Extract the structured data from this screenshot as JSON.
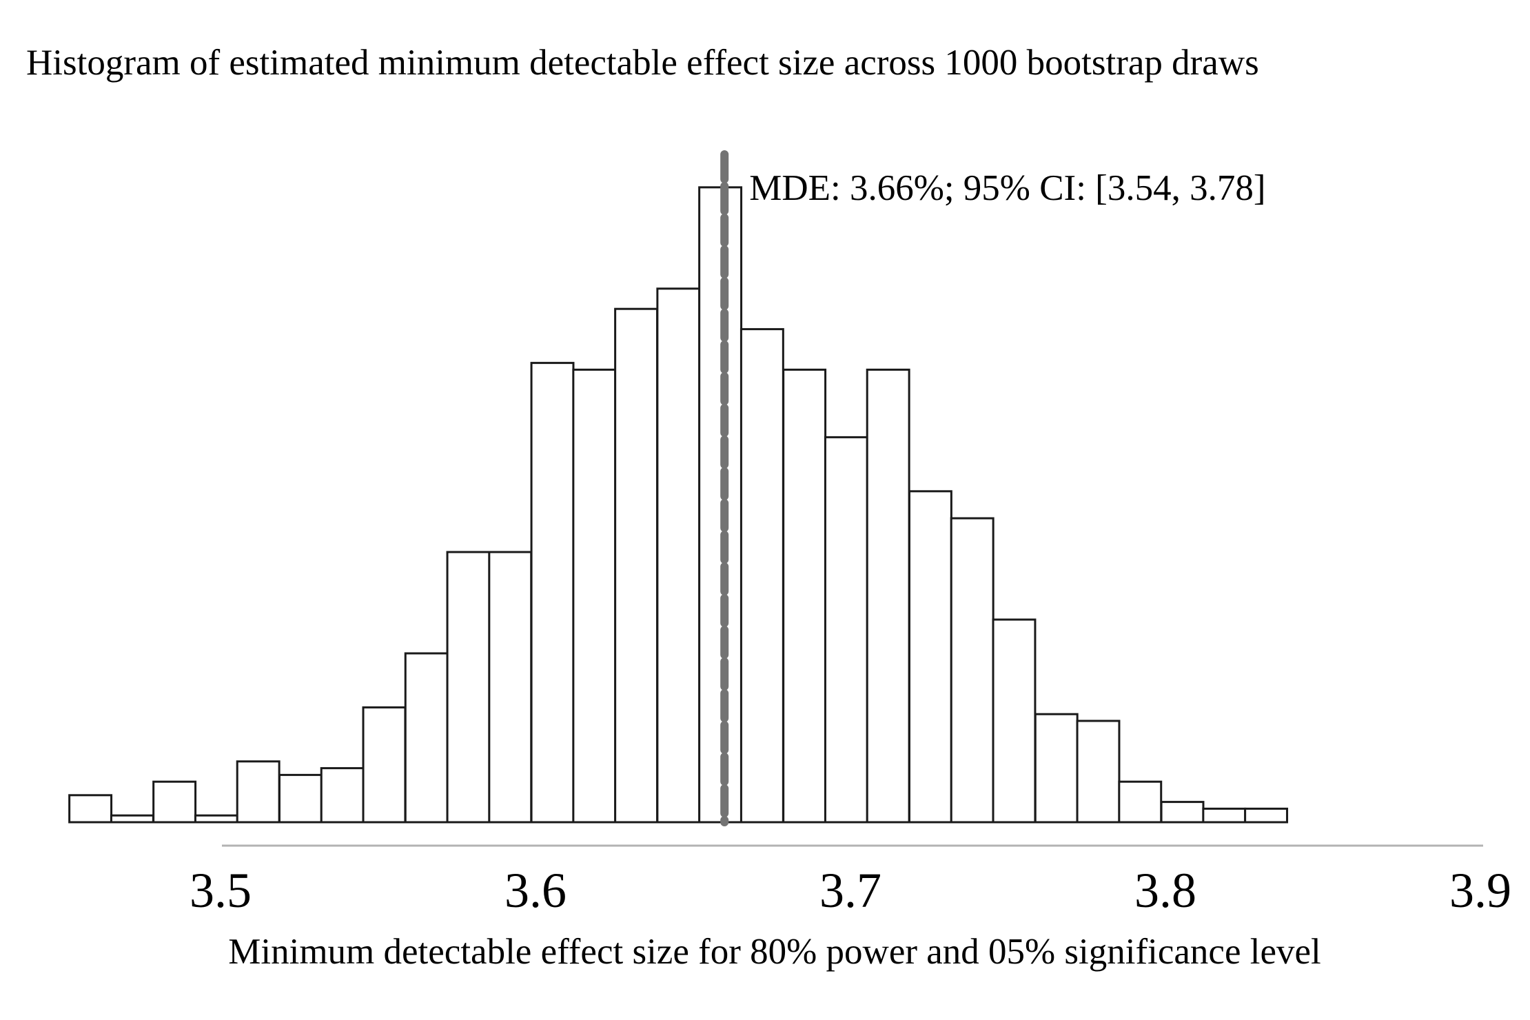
{
  "chart_data": {
    "type": "bar",
    "title": "Histogram of estimated minimum detectable effect size across 1000 bootstrap draws",
    "xlabel": "Minimum detectable effect size for 80% power and 05% significance level",
    "ylabel": "",
    "xlim": [
      3.45,
      3.9
    ],
    "ylim": [
      0,
      100
    ],
    "grid": false,
    "x_ticks": [
      "3.5",
      "3.6",
      "3.7",
      "3.8",
      "3.9"
    ],
    "bin_width": 0.01333,
    "bin_starts": [
      3.452,
      3.4653,
      3.4787,
      3.492,
      3.5053,
      3.5187,
      3.532,
      3.5453,
      3.5587,
      3.572,
      3.5853,
      3.5987,
      3.612,
      3.6253,
      3.6387,
      3.652,
      3.6653,
      3.6787,
      3.692,
      3.7053,
      3.7187,
      3.732,
      3.7453,
      3.7587,
      3.772,
      3.7853,
      3.7987,
      3.812,
      3.8253
    ],
    "values": [
      4,
      1,
      6,
      1,
      9,
      7,
      8,
      17,
      25,
      40,
      40,
      68,
      67,
      76,
      79,
      94,
      73,
      67,
      57,
      67,
      49,
      45,
      30,
      16,
      15,
      6,
      3,
      2,
      2
    ],
    "annotation": {
      "text": "MDE: 3.66%; 95% CI: [3.54, 3.78]",
      "x": 3.66
    },
    "mde_line_color": "#737373"
  }
}
